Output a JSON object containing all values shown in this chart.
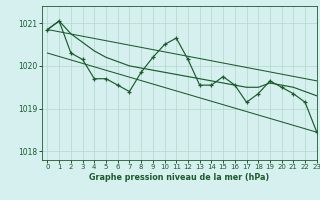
{
  "title": "Graphe pression niveau de la mer (hPa)",
  "background_color": "#d6f0f0",
  "grid_color": "#b0d8c8",
  "line_color": "#1a5c2a",
  "xlim": [
    -0.5,
    23
  ],
  "ylim": [
    1017.8,
    1021.4
  ],
  "yticks": [
    1018,
    1019,
    1020,
    1021
  ],
  "xticks": [
    0,
    1,
    2,
    3,
    4,
    5,
    6,
    7,
    8,
    9,
    10,
    11,
    12,
    13,
    14,
    15,
    16,
    17,
    18,
    19,
    20,
    21,
    22,
    23
  ],
  "smooth_series": [
    1020.85,
    1021.05,
    1020.75,
    1020.55,
    1020.35,
    1020.2,
    1020.1,
    1020.0,
    1019.95,
    1019.9,
    1019.85,
    1019.8,
    1019.75,
    1019.7,
    1019.65,
    1019.6,
    1019.55,
    1019.5,
    1019.5,
    1019.6,
    1019.55,
    1019.5,
    1019.4,
    1019.3
  ],
  "jagged_series": [
    1020.85,
    1021.05,
    1020.3,
    1020.15,
    1019.7,
    1019.7,
    1019.55,
    1019.4,
    1019.85,
    1020.2,
    1020.5,
    1020.65,
    1020.15,
    1019.55,
    1019.55,
    1019.75,
    1019.55,
    1019.15,
    1019.35,
    1019.65,
    1019.5,
    1019.35,
    1019.15,
    1018.45
  ],
  "trend1": [
    1020.85,
    1019.65
  ],
  "trend2": [
    1020.3,
    1018.45
  ]
}
